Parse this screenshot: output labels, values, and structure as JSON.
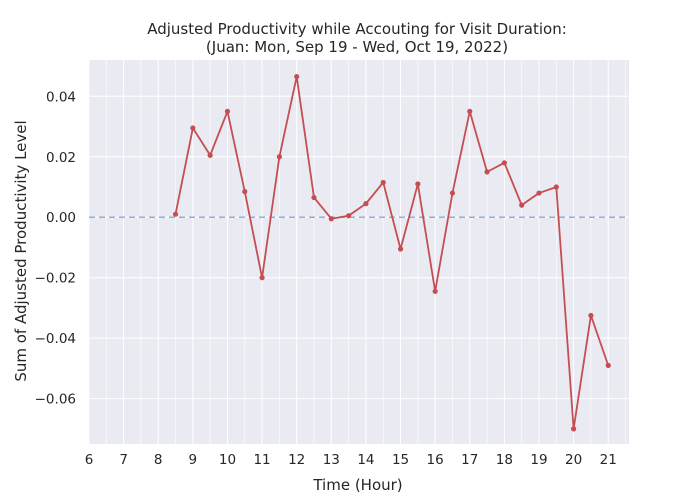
{
  "chart_data": {
    "type": "line",
    "title": "Adjusted Productivity while Accouting for Visit Duration:",
    "subtitle": "(Juan: Mon, Sep 19 - Wed, Oct 19, 2022)",
    "xlabel": "Time (Hour)",
    "ylabel": "Sum of Adjusted Productivity Level",
    "xlim": [
      6,
      21.6
    ],
    "ylim": [
      -0.075,
      0.052
    ],
    "xticks": [
      6,
      7,
      8,
      9,
      10,
      11,
      12,
      13,
      14,
      15,
      16,
      17,
      18,
      19,
      20,
      21
    ],
    "yticks": [
      -0.06,
      -0.04,
      -0.02,
      0.0,
      0.02,
      0.04
    ],
    "ytick_labels": [
      "−0.06",
      "−0.04",
      "−0.02",
      "0.00",
      "0.02",
      "0.04"
    ],
    "grid": true,
    "reference_line": {
      "y": 0,
      "style": "dashed",
      "color": "#8fb0e0"
    },
    "series": [
      {
        "color": "#c44e52",
        "x": [
          8.5,
          9,
          9.5,
          10,
          10.5,
          11,
          11.5,
          12,
          12.5,
          13,
          13.5,
          14,
          14.5,
          15,
          15.5,
          16,
          16.5,
          17,
          17.5,
          18,
          18.5,
          19,
          19.5,
          20,
          20.5,
          21
        ],
        "y": [
          0.001,
          0.0295,
          0.0205,
          0.035,
          0.0085,
          -0.02,
          0.02,
          0.0465,
          0.0065,
          -0.0005,
          0.0005,
          0.0045,
          0.0115,
          -0.0105,
          0.011,
          -0.0245,
          0.008,
          0.035,
          0.015,
          0.018,
          0.004,
          0.008,
          0.01,
          -0.07,
          -0.0325,
          -0.049
        ]
      }
    ]
  }
}
